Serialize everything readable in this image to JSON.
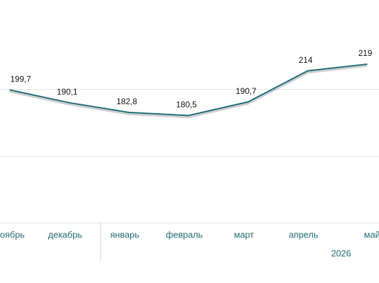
{
  "chart_data": {
    "type": "line",
    "categories": [
      "оябрь",
      "декабрь",
      "январь",
      "февраль",
      "март",
      "апрель",
      "май"
    ],
    "values": [
      199.7,
      190.1,
      182.8,
      180.5,
      190.7,
      214,
      219
    ],
    "value_labels": [
      "199,7",
      "190,1",
      "182,8",
      "180,5",
      "190,7",
      "214",
      "219"
    ],
    "color": "#1f6f78",
    "year_label": "2026",
    "ylim": [
      100,
      250
    ],
    "yticks": [
      150,
      200
    ],
    "grid": true
  }
}
